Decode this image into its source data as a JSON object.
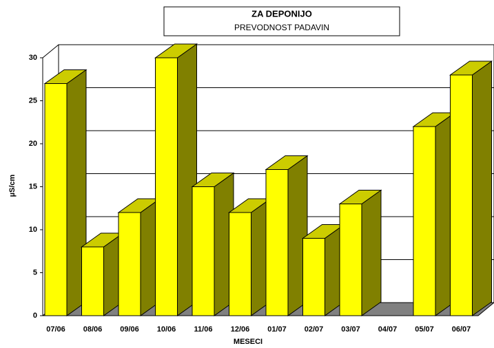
{
  "chart_data": {
    "type": "bar3d",
    "title": "ZA DEPONIJO",
    "subtitle": "PREVODNOST PADAVIN",
    "x_label": "MESECI",
    "y_label": "µS/cm",
    "categories": [
      "07/06",
      "08/06",
      "09/06",
      "10/06",
      "11/06",
      "12/06",
      "01/07",
      "02/07",
      "03/07",
      "04/07",
      "05/07",
      "06/07"
    ],
    "values": [
      27,
      8,
      12,
      30,
      15,
      12,
      17,
      9,
      13,
      null,
      22,
      28
    ],
    "color": "#ffff00",
    "top_color": "#cccc00",
    "side_color": "#808000",
    "ylim": [
      0,
      30
    ],
    "yticks": [
      0,
      5,
      10,
      15,
      20,
      25,
      30
    ],
    "grid": true
  }
}
